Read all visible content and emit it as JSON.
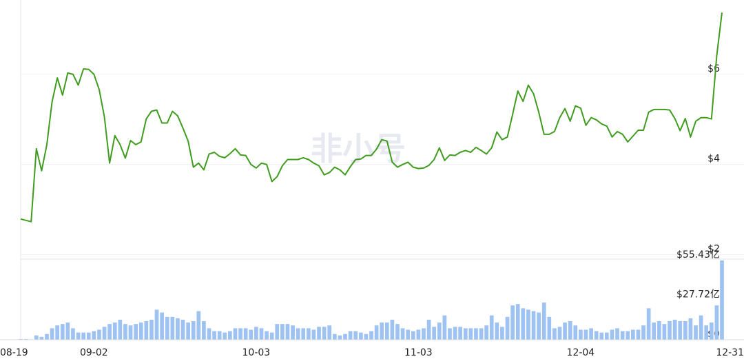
{
  "chart_data": [
    {
      "type": "line",
      "watermark": "非小号",
      "categories": [
        "08-19",
        null,
        null,
        null,
        null,
        null,
        null,
        null,
        null,
        null,
        null,
        null,
        null,
        null,
        "09-02",
        null,
        null,
        null,
        null,
        null,
        null,
        null,
        null,
        null,
        null,
        null,
        null,
        null,
        null,
        null,
        null,
        null,
        null,
        null,
        null,
        null,
        null,
        null,
        null,
        null,
        null,
        null,
        null,
        null,
        null,
        "10-03",
        null,
        null,
        null,
        null,
        null,
        null,
        null,
        null,
        null,
        null,
        null,
        null,
        null,
        null,
        null,
        null,
        null,
        null,
        null,
        null,
        null,
        null,
        null,
        null,
        null,
        null,
        null,
        null,
        null,
        null,
        "11-03",
        null,
        null,
        null,
        null,
        null,
        null,
        null,
        null,
        null,
        null,
        null,
        null,
        null,
        null,
        null,
        null,
        null,
        null,
        null,
        null,
        null,
        null,
        null,
        null,
        null,
        null,
        null,
        null,
        null,
        null,
        "12-04",
        null,
        null,
        null,
        null,
        null,
        null,
        null,
        null,
        null,
        null,
        null,
        null,
        null,
        null,
        null,
        null,
        null,
        null,
        null,
        null,
        null,
        null,
        null,
        null,
        null,
        null,
        "12-31"
      ],
      "values": [
        2.79,
        2.76,
        2.73,
        4.35,
        3.86,
        4.44,
        5.39,
        5.92,
        5.54,
        6.03,
        6.0,
        5.76,
        6.12,
        6.11,
        6.0,
        5.66,
        5.05,
        4.03,
        4.64,
        4.44,
        4.14,
        4.53,
        4.44,
        4.5,
        5.01,
        5.18,
        5.21,
        4.92,
        4.92,
        5.18,
        5.08,
        4.81,
        4.52,
        3.94,
        4.03,
        3.88,
        4.23,
        4.27,
        4.18,
        4.15,
        4.24,
        4.35,
        4.21,
        4.2,
        4.0,
        3.92,
        4.03,
        4.0,
        3.62,
        3.73,
        3.97,
        4.11,
        4.11,
        4.11,
        4.15,
        4.11,
        4.03,
        3.97,
        3.77,
        3.82,
        3.94,
        3.88,
        3.77,
        3.95,
        4.11,
        4.12,
        4.2,
        4.2,
        4.34,
        4.55,
        4.52,
        4.05,
        3.94,
        4.0,
        4.05,
        3.94,
        3.91,
        3.92,
        3.98,
        4.11,
        4.37,
        4.09,
        4.21,
        4.2,
        4.27,
        4.31,
        4.27,
        4.38,
        4.31,
        4.23,
        4.37,
        4.72,
        4.55,
        4.61,
        5.11,
        5.63,
        5.4,
        5.76,
        5.57,
        5.16,
        4.67,
        4.67,
        4.73,
        5.04,
        5.24,
        4.96,
        5.3,
        5.25,
        4.87,
        5.04,
        4.99,
        4.9,
        4.85,
        4.61,
        4.73,
        4.67,
        4.5,
        4.63,
        4.76,
        4.76,
        5.16,
        5.22,
        5.22,
        5.22,
        5.21,
        5.02,
        4.75,
        5.02,
        4.61,
        4.96,
        5.04,
        5.04,
        5.01,
        6.41,
        7.37
      ],
      "color": "#3f9c1e",
      "ylim": [
        1.9,
        7.65
      ],
      "yticks": [
        {
          "value": 2,
          "label": "$2"
        },
        {
          "value": 4,
          "label": "$4"
        },
        {
          "value": 6,
          "label": "$6"
        }
      ],
      "grid": true
    },
    {
      "type": "bar",
      "values": [
        0.5,
        0.5,
        0.3,
        3,
        2,
        4,
        8,
        10,
        11,
        12,
        8,
        5,
        5,
        5,
        6,
        7,
        9,
        11,
        12,
        14,
        11,
        10,
        11,
        12,
        13,
        14,
        21,
        19,
        16,
        16,
        15,
        14,
        12,
        13,
        20,
        13,
        8,
        6,
        6,
        5,
        6,
        8,
        8,
        8,
        7,
        9,
        8,
        6,
        5,
        11,
        11,
        11,
        10,
        8,
        8,
        8,
        7,
        9,
        9,
        10,
        4,
        3,
        4,
        6,
        6,
        5,
        4,
        6,
        10,
        12,
        12,
        14,
        11,
        8,
        7,
        6,
        7,
        8,
        14,
        9,
        12,
        17,
        8,
        9,
        9,
        8,
        8,
        8,
        8,
        10,
        17,
        12,
        9,
        16,
        24,
        25,
        22,
        21,
        20,
        19,
        26,
        16,
        8,
        9,
        12,
        13,
        10,
        7,
        7,
        8,
        6,
        5,
        5,
        7,
        8,
        6,
        6,
        7,
        7,
        10,
        22,
        12,
        13,
        11,
        13,
        14,
        13,
        13,
        15,
        10,
        17,
        10,
        12,
        24,
        55.43
      ],
      "color": "#9ec2f2",
      "ylim": [
        0,
        55.43
      ],
      "yticks": [
        {
          "value": 0,
          "label": "$0"
        },
        {
          "value": 27.72,
          "label": "$27.72亿"
        },
        {
          "value": 55.43,
          "label": "$55.43亿"
        }
      ]
    }
  ]
}
